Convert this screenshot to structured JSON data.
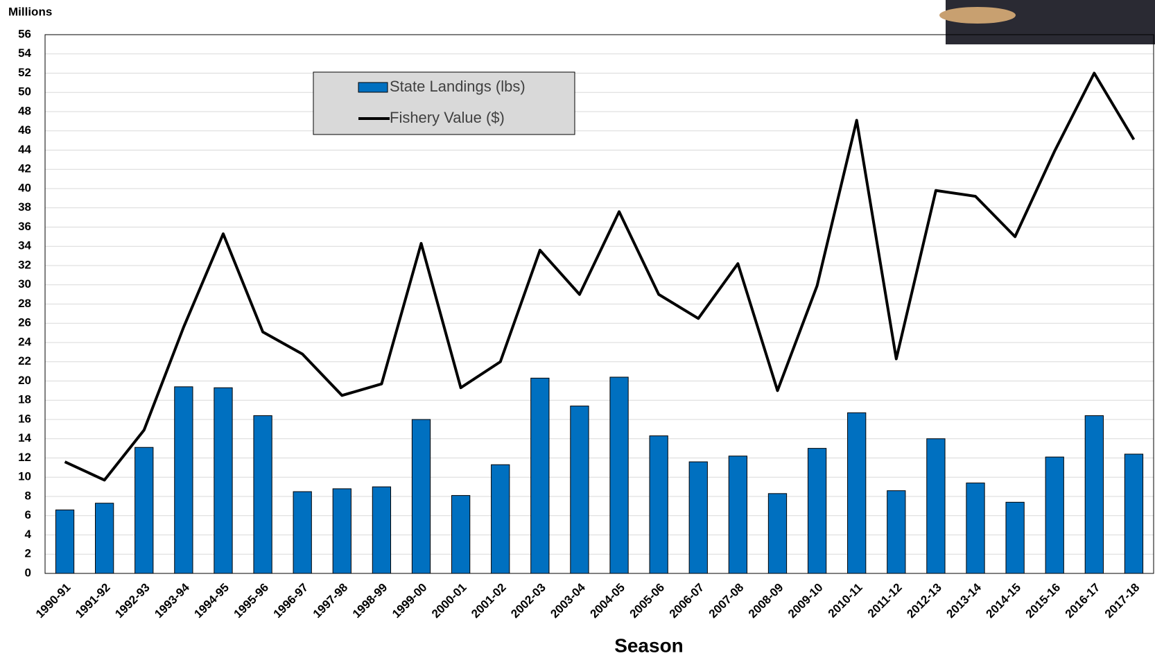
{
  "chart_data": {
    "type": "bar_line",
    "y_label": "Millions",
    "x_label": "Season",
    "categories": [
      "1990-91",
      "1991-92",
      "1992-93",
      "1993-94",
      "1994-95",
      "1995-96",
      "1996-97",
      "1997-98",
      "1998-99",
      "1999-00",
      "2000-01",
      "2001-02",
      "2002-03",
      "2003-04",
      "2004-05",
      "2005-06",
      "2006-07",
      "2007-08",
      "2008-09",
      "2009-10",
      "2010-11",
      "2011-12",
      "2012-13",
      "2013-14",
      "2014-15",
      "2015-16",
      "2016-17",
      "2017-18"
    ],
    "series": [
      {
        "name": "State Landings (lbs)",
        "type": "bar",
        "color": "#0070c0",
        "values": [
          6.6,
          7.3,
          13.1,
          19.4,
          19.3,
          16.4,
          8.5,
          8.8,
          9.0,
          16.0,
          8.1,
          11.3,
          20.3,
          17.4,
          20.4,
          14.3,
          11.6,
          12.2,
          8.3,
          13.0,
          16.7,
          8.6,
          14.0,
          9.4,
          7.4,
          12.1,
          16.4,
          12.4
        ]
      },
      {
        "name": "Fishery Value ($)",
        "type": "line",
        "color": "#000000",
        "values": [
          11.6,
          9.7,
          14.9,
          25.6,
          35.3,
          25.1,
          22.8,
          18.5,
          19.7,
          34.3,
          19.3,
          22.0,
          33.6,
          29.0,
          37.6,
          29.0,
          26.5,
          32.2,
          19.0,
          29.9,
          47.1,
          22.3,
          39.8,
          39.2,
          35.0,
          43.9,
          52.0,
          45.1
        ]
      }
    ],
    "ylim": [
      0,
      56
    ],
    "yticks": [
      0,
      2,
      4,
      6,
      8,
      10,
      12,
      14,
      16,
      18,
      20,
      22,
      24,
      26,
      28,
      30,
      32,
      34,
      36,
      38,
      40,
      42,
      44,
      46,
      48,
      50,
      52,
      54,
      56
    ],
    "grid": true
  }
}
